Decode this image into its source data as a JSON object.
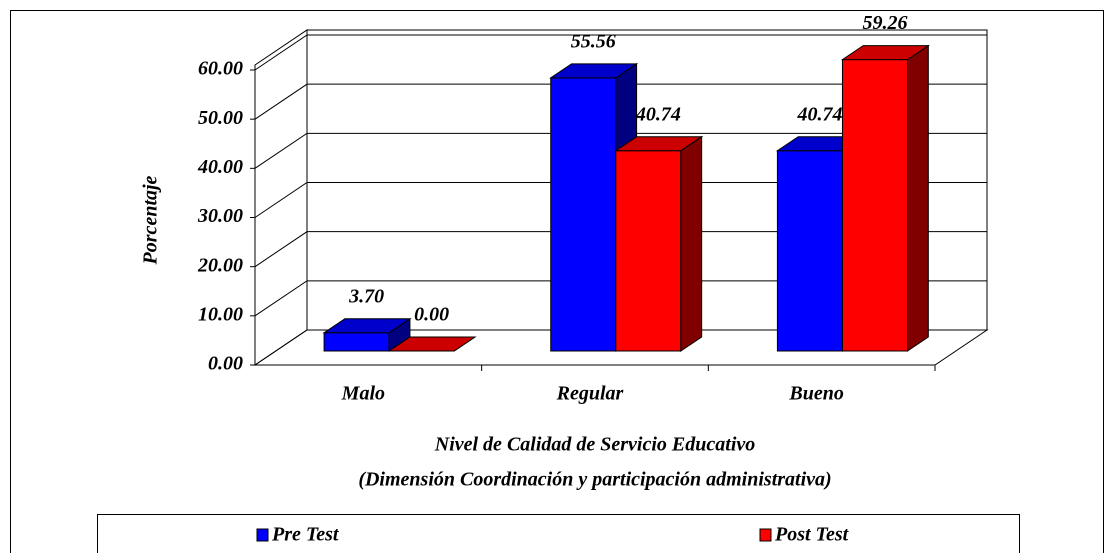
{
  "chart_data": {
    "type": "bar3d",
    "y_label": "Porcentaje",
    "x_label": [
      "Nivel de Calidad de Servicio Educativo",
      "(Dimensión Coordinación y participación administrativa)"
    ],
    "categories": [
      "Malo",
      "Regular",
      "Bueno"
    ],
    "series": [
      {
        "name": "Pre Test",
        "color": "#0000ff",
        "values": [
          3.7,
          55.56,
          40.74
        ],
        "value_labels": [
          "3.70",
          "55.56",
          "40.74"
        ]
      },
      {
        "name": "Post Test",
        "color": "#ff0000",
        "values": [
          0.0,
          40.74,
          59.26
        ],
        "value_labels": [
          "0.00",
          "40.74",
          "59.26"
        ]
      }
    ],
    "ylim": [
      0,
      60
    ],
    "yticks": [
      {
        "value": 0,
        "label": "0.00"
      },
      {
        "value": 10,
        "label": "10.00"
      },
      {
        "value": 20,
        "label": "20.00"
      },
      {
        "value": 30,
        "label": "30.00"
      },
      {
        "value": 40,
        "label": "40.00"
      },
      {
        "value": 50,
        "label": "50.00"
      },
      {
        "value": 60,
        "label": "60.00"
      }
    ],
    "grid": true,
    "legend": "bottom"
  }
}
